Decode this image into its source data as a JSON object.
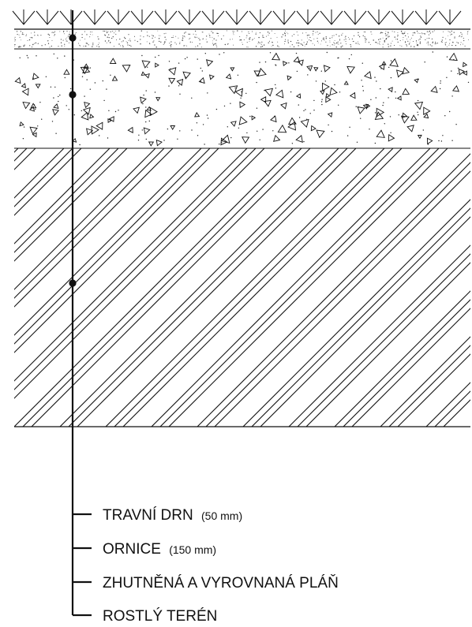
{
  "diagram": {
    "layers": [
      {
        "name": "TRAVNÍ DRN",
        "thickness": "(50 mm)"
      },
      {
        "name": "ORNICE",
        "thickness": "(150 mm)"
      },
      {
        "name": "ZHUTNĚNÁ A VYROVNANÁ PLÁŇ",
        "thickness": ""
      },
      {
        "name": "ROSTLÝ TERÉN",
        "thickness": ""
      }
    ],
    "colors": {
      "line": "#111111",
      "background": "#ffffff"
    }
  }
}
